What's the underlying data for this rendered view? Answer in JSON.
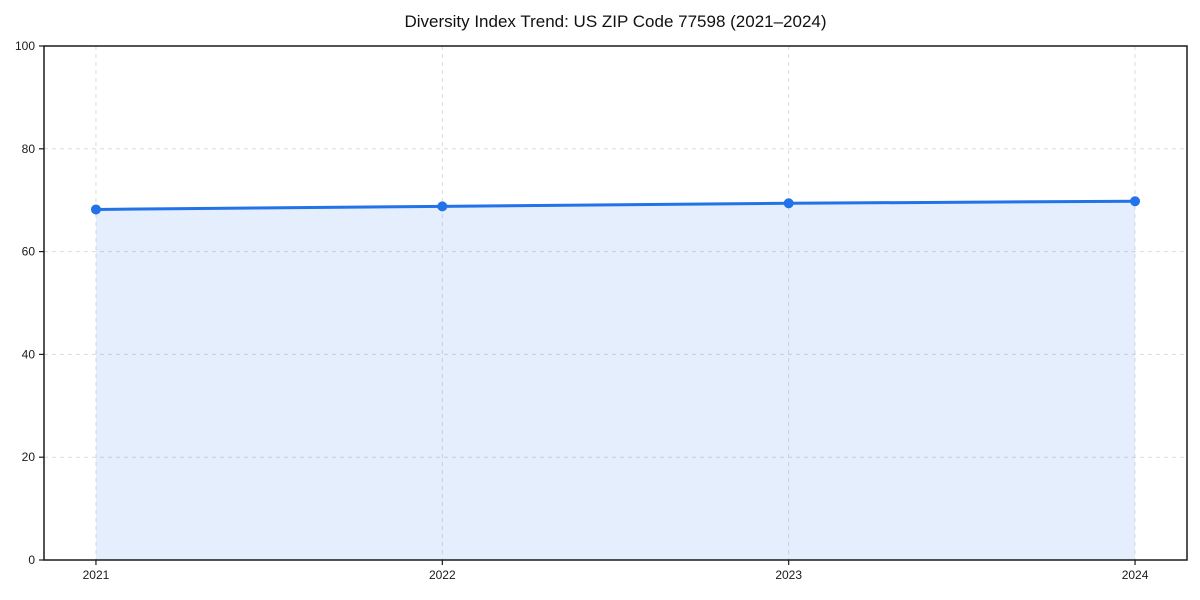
{
  "chart_data": {
    "type": "area",
    "title": "Diversity Index Trend: US ZIP Code 77598 (2021–2024)",
    "x": [
      2021,
      2022,
      2023,
      2024
    ],
    "categories": [
      "2021",
      "2022",
      "2023",
      "2024"
    ],
    "series": [
      {
        "name": "Diversity Index",
        "values": [
          68.2,
          68.8,
          69.4,
          69.8
        ]
      }
    ],
    "xlabel": "",
    "ylabel": "",
    "xlim": [
      2020.85,
      2024.15
    ],
    "ylim": [
      0,
      100
    ],
    "yticks": [
      0,
      20,
      40,
      60,
      80,
      100
    ],
    "grid": true,
    "grid_style": "dashed",
    "legend": "none",
    "area_fill": true,
    "line_color": "#2272e8",
    "fill_color": "rgba(34,114,232,0.12)",
    "grid_color": "#dcdcdc",
    "spine_color": "#1a1a1a",
    "tick_label_color": "#1a1a1a",
    "marker": "circle",
    "marker_size": 5,
    "line_width": 3
  }
}
